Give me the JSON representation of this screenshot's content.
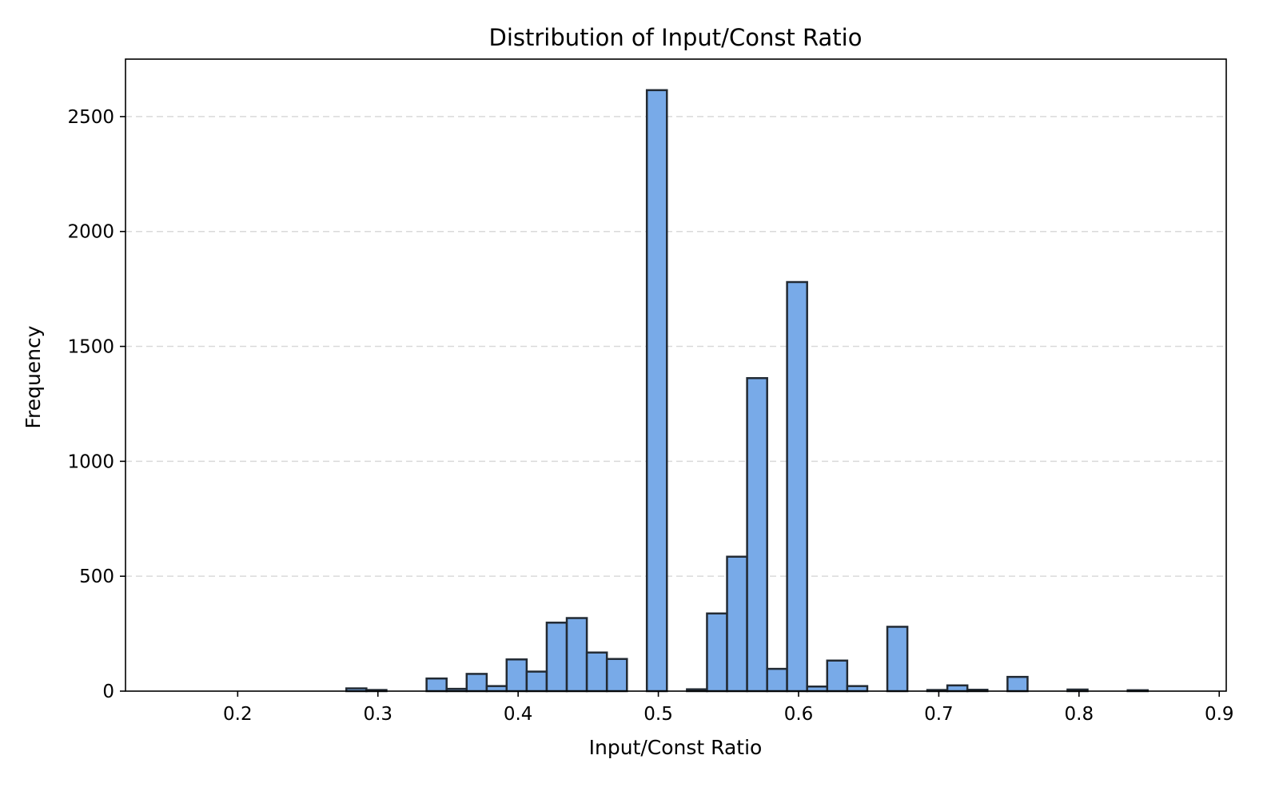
{
  "chart_data": {
    "type": "bar",
    "title": "Distribution of Input/Const Ratio",
    "xlabel": "Input/Const Ratio",
    "ylabel": "Frequency",
    "xlim": [
      0.12,
      0.905
    ],
    "ylim": [
      0,
      2750
    ],
    "bin_width": 0.0143,
    "x_ticks": [
      {
        "value": 0.2,
        "label": "0.2"
      },
      {
        "value": 0.3,
        "label": "0.3"
      },
      {
        "value": 0.4,
        "label": "0.4"
      },
      {
        "value": 0.5,
        "label": "0.5"
      },
      {
        "value": 0.6,
        "label": "0.6"
      },
      {
        "value": 0.7,
        "label": "0.7"
      },
      {
        "value": 0.8,
        "label": "0.8"
      },
      {
        "value": 0.9,
        "label": "0.9"
      }
    ],
    "y_ticks": [
      {
        "value": 0,
        "label": "0"
      },
      {
        "value": 500,
        "label": "500"
      },
      {
        "value": 1000,
        "label": "1000"
      },
      {
        "value": 1500,
        "label": "1500"
      },
      {
        "value": 2000,
        "label": "2000"
      },
      {
        "value": 2500,
        "label": "2500"
      }
    ],
    "grid": "horizontal dashed",
    "bars": [
      {
        "x0": 0.2775,
        "x1": 0.2918,
        "value": 12
      },
      {
        "x0": 0.2918,
        "x1": 0.3061,
        "value": 5
      },
      {
        "x0": 0.3347,
        "x1": 0.349,
        "value": 55
      },
      {
        "x0": 0.349,
        "x1": 0.3633,
        "value": 10
      },
      {
        "x0": 0.3633,
        "x1": 0.3776,
        "value": 75
      },
      {
        "x0": 0.3776,
        "x1": 0.3918,
        "value": 22
      },
      {
        "x0": 0.3918,
        "x1": 0.4061,
        "value": 138
      },
      {
        "x0": 0.4061,
        "x1": 0.4204,
        "value": 85
      },
      {
        "x0": 0.4204,
        "x1": 0.4347,
        "value": 298
      },
      {
        "x0": 0.4347,
        "x1": 0.449,
        "value": 318
      },
      {
        "x0": 0.449,
        "x1": 0.4633,
        "value": 168
      },
      {
        "x0": 0.4633,
        "x1": 0.4776,
        "value": 140
      },
      {
        "x0": 0.4918,
        "x1": 0.5061,
        "value": 2615
      },
      {
        "x0": 0.5204,
        "x1": 0.5347,
        "value": 8
      },
      {
        "x0": 0.5347,
        "x1": 0.549,
        "value": 338
      },
      {
        "x0": 0.549,
        "x1": 0.5633,
        "value": 585
      },
      {
        "x0": 0.5633,
        "x1": 0.5776,
        "value": 1362
      },
      {
        "x0": 0.5776,
        "x1": 0.5918,
        "value": 97
      },
      {
        "x0": 0.5918,
        "x1": 0.6061,
        "value": 1780
      },
      {
        "x0": 0.6061,
        "x1": 0.6204,
        "value": 20
      },
      {
        "x0": 0.6204,
        "x1": 0.6347,
        "value": 133
      },
      {
        "x0": 0.6347,
        "x1": 0.649,
        "value": 22
      },
      {
        "x0": 0.6633,
        "x1": 0.6776,
        "value": 280
      },
      {
        "x0": 0.6918,
        "x1": 0.7061,
        "value": 5
      },
      {
        "x0": 0.7061,
        "x1": 0.7204,
        "value": 25
      },
      {
        "x0": 0.7204,
        "x1": 0.7347,
        "value": 6
      },
      {
        "x0": 0.749,
        "x1": 0.7633,
        "value": 62
      },
      {
        "x0": 0.7918,
        "x1": 0.8061,
        "value": 7
      },
      {
        "x0": 0.8347,
        "x1": 0.849,
        "value": 4
      }
    ]
  }
}
